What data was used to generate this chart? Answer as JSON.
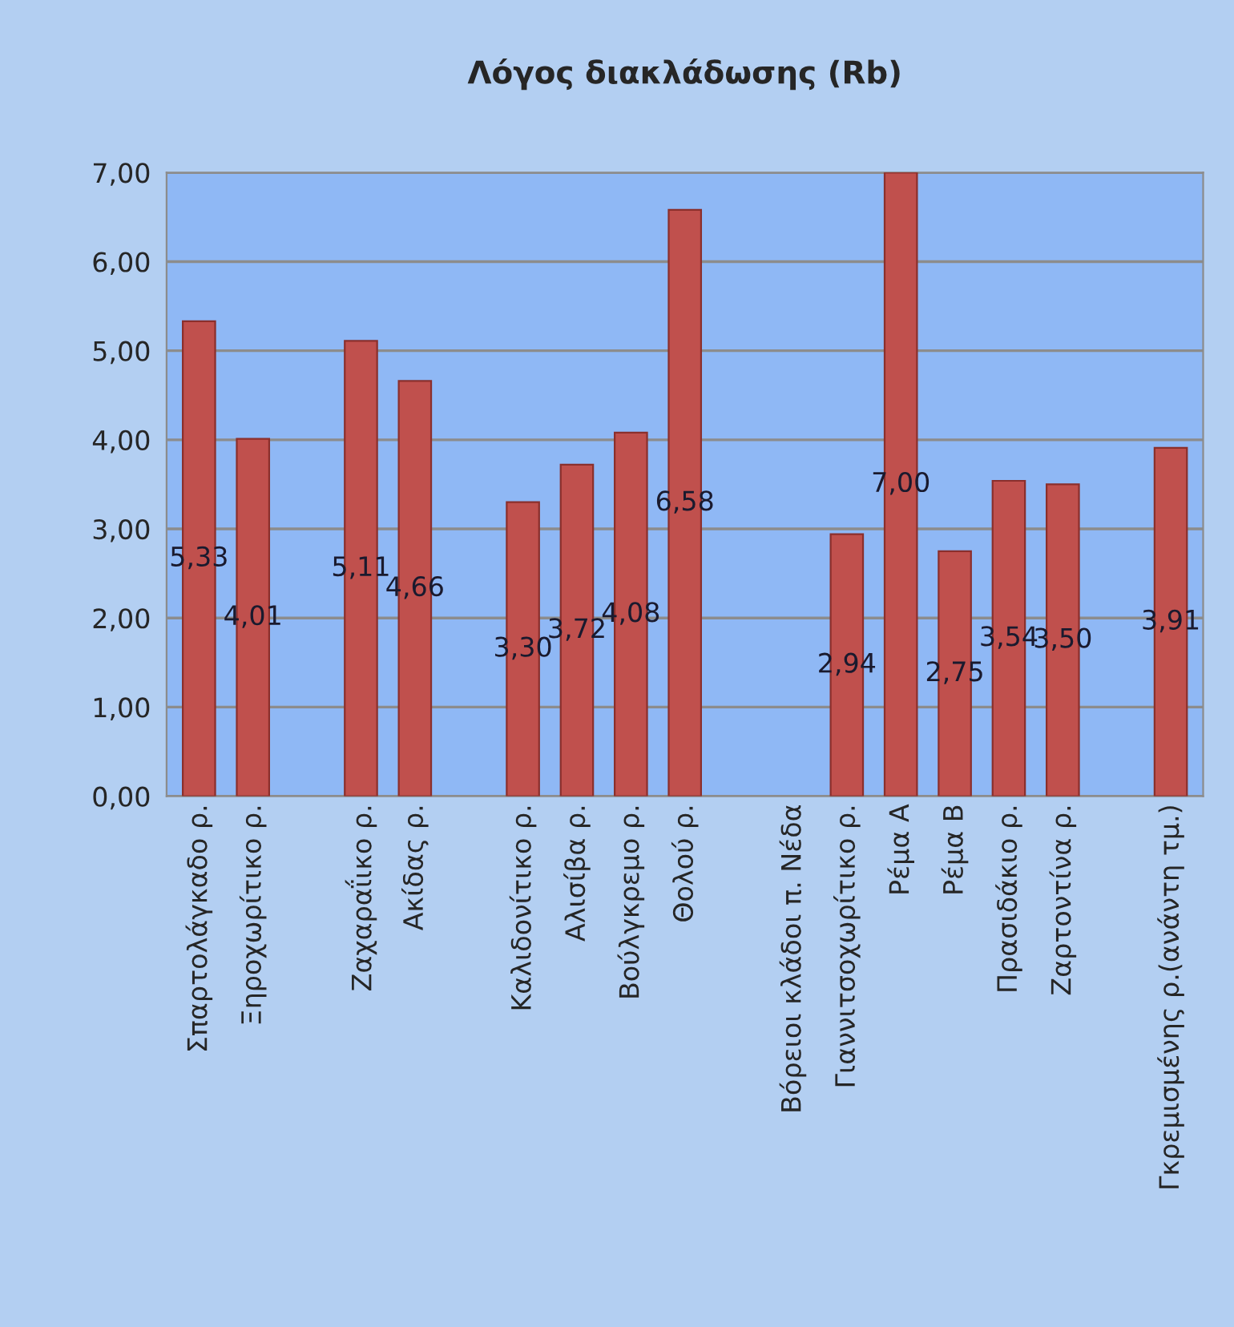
{
  "chart_data": {
    "type": "bar",
    "title": "Λόγος διακλάδωσης (Rb)",
    "categories": [
      "Σπαρτολάγκαδο ρ.",
      "Ξηροχωρίτικο ρ.",
      null,
      "Ζαχαραΐικο ρ.",
      "Ακίδας ρ.",
      null,
      "Καλιδονίτικο ρ.",
      "Αλισίβα ρ.",
      "Βούλγκρεμο ρ.",
      "Θολού ρ.",
      null,
      "Βόρειοι κλάδοι π. Νέδα",
      "Γιαννιτσοχωρίτικο ρ.",
      "Ρέμα Α",
      "Ρέμα Β",
      "Πρασιδάκιο ρ.",
      "Ζαρτοντίνα ρ.",
      null,
      "Γκρεμισμένης ρ.(ανάντη τμ.)"
    ],
    "values": [
      5.33,
      4.01,
      null,
      5.11,
      4.66,
      null,
      3.3,
      3.72,
      4.08,
      6.58,
      null,
      null,
      2.94,
      7.0,
      2.75,
      3.54,
      3.5,
      null,
      3.91
    ],
    "value_labels": [
      "5,33",
      "4,01",
      null,
      "5,11",
      "4,66",
      null,
      "3,30",
      "3,72",
      "4,08",
      "6,58",
      null,
      null,
      "2,94",
      "7,00",
      "2,75",
      "3,54",
      "3,50",
      null,
      "3,91"
    ],
    "color": "#c0504d",
    "ylim": [
      0,
      7
    ],
    "yticks": [
      {
        "value": 0,
        "label": "0,00"
      },
      {
        "value": 1,
        "label": "1,00"
      },
      {
        "value": 2,
        "label": "2,00"
      },
      {
        "value": 3,
        "label": "3,00"
      },
      {
        "value": 4,
        "label": "4,00"
      },
      {
        "value": 5,
        "label": "5,00"
      },
      {
        "value": 6,
        "label": "6,00"
      },
      {
        "value": 7,
        "label": "7,00"
      }
    ],
    "grid": "y",
    "legend": false
  }
}
